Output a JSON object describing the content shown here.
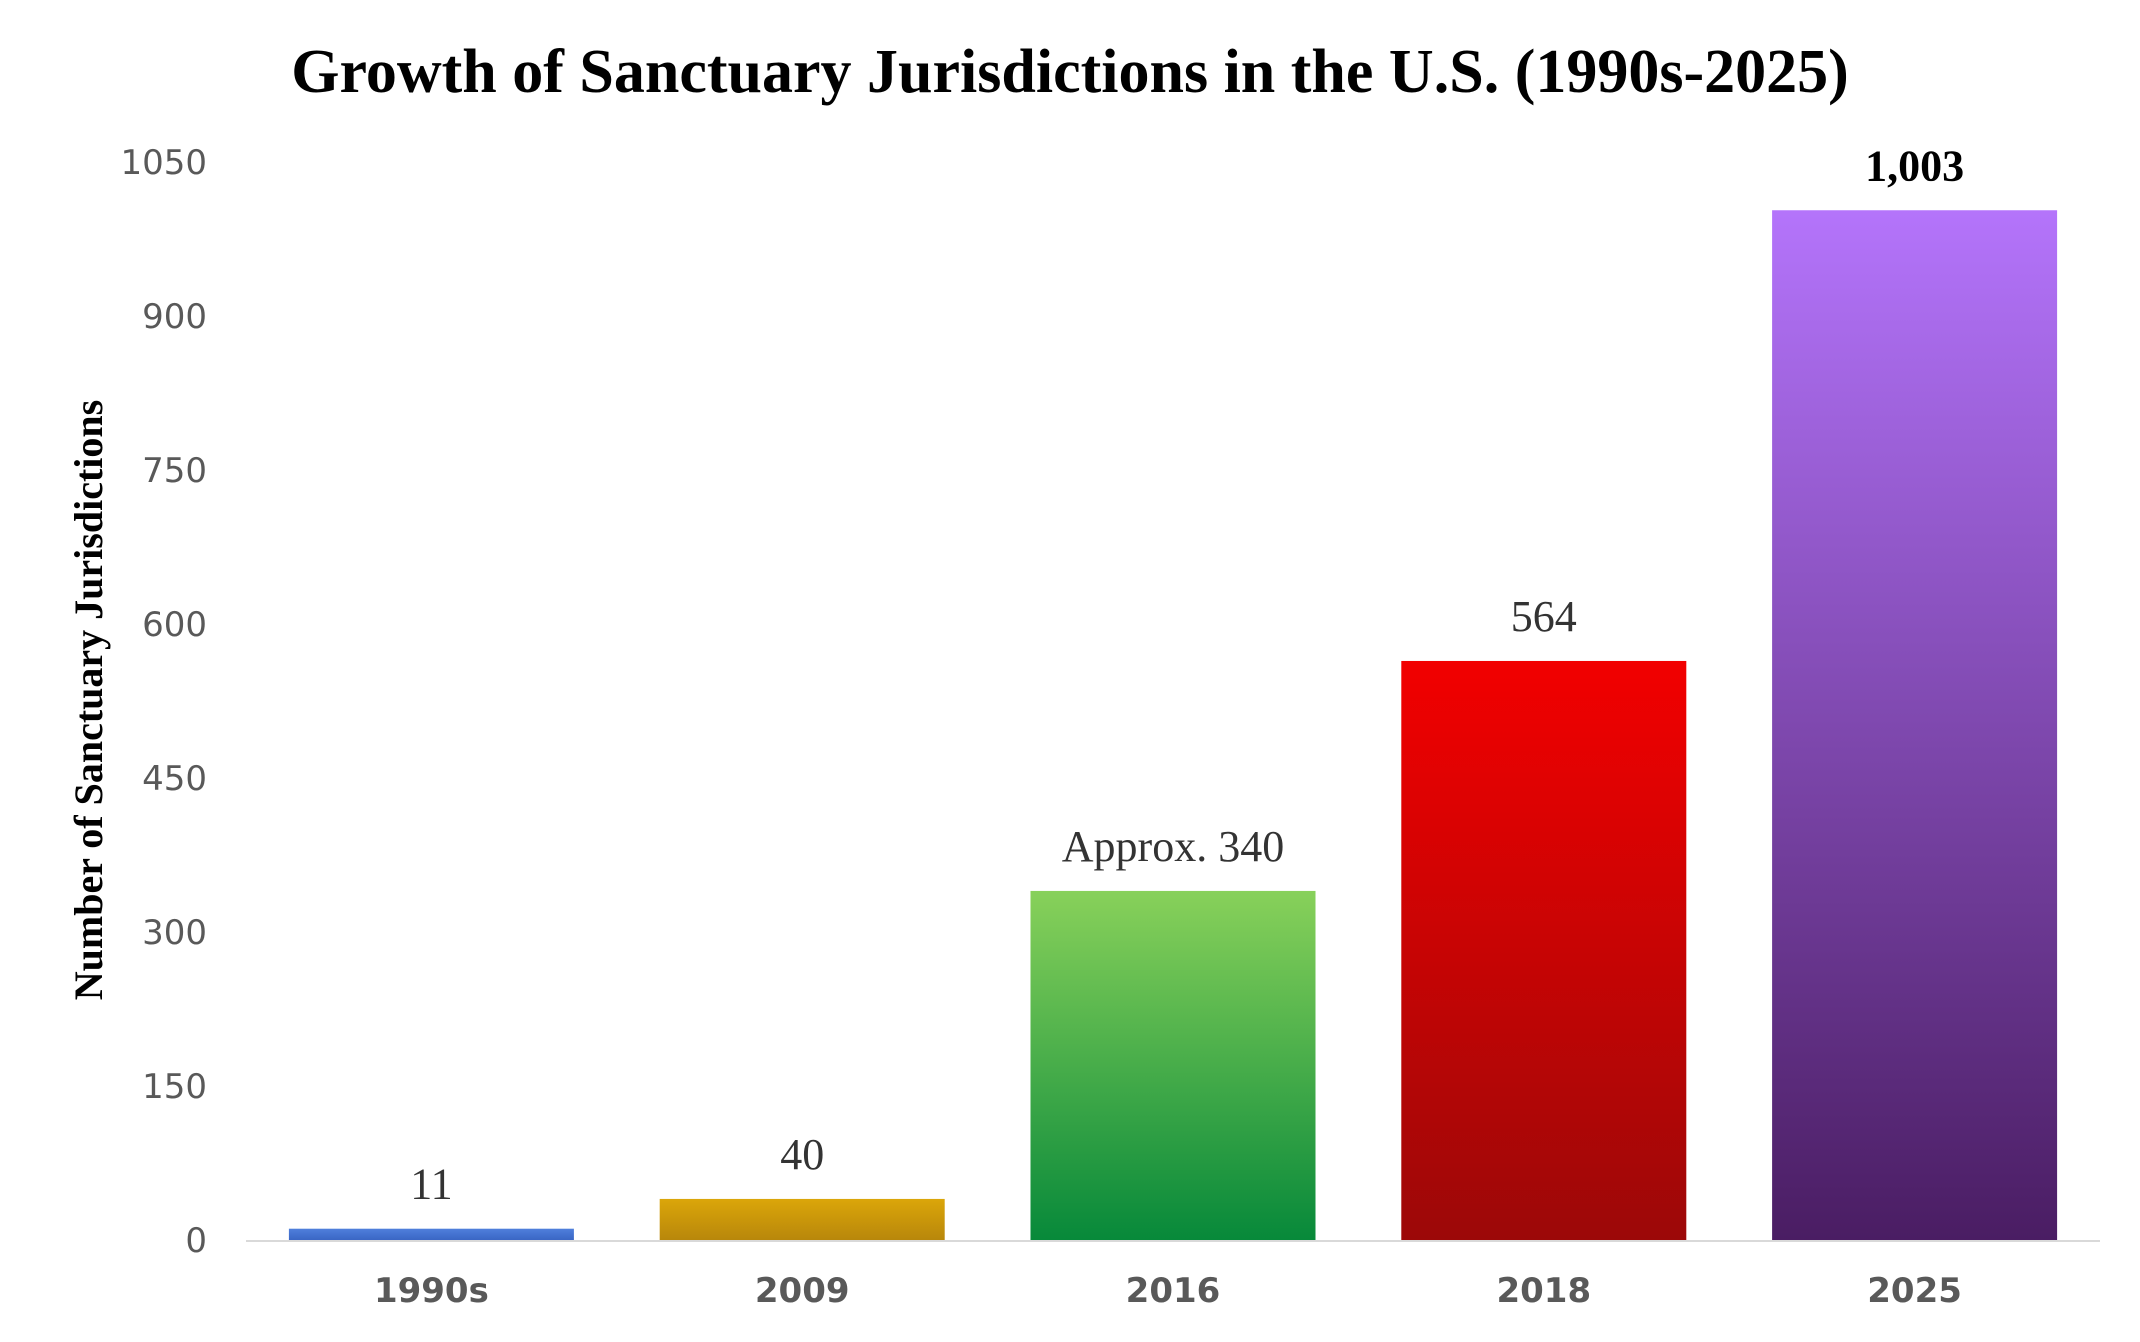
{
  "chart_data": {
    "type": "bar",
    "title": "Growth of Sanctuary Jurisdictions in the U.S. (1990s-2025)",
    "xlabel": "",
    "ylabel": "Number of Sanctuary Jurisdictions",
    "ylim": [
      0,
      1050
    ],
    "yticks": [
      0,
      150,
      300,
      450,
      600,
      750,
      900,
      1050
    ],
    "ytick_labels": [
      "0",
      "150",
      "300",
      "450",
      "600",
      "750",
      "900",
      "1050"
    ],
    "grid": false,
    "legend": "none",
    "categories": [
      "1990s",
      "2009",
      "2016",
      "2018",
      "2025"
    ],
    "values": [
      11,
      40,
      340,
      564,
      1003
    ],
    "data_labels": [
      "11",
      "40",
      "Approx. 340",
      "564",
      "1,003"
    ],
    "label_bold": [
      false,
      false,
      false,
      false,
      true
    ],
    "bar_colors": [
      {
        "top": "#4f7fdc",
        "bottom": "#3a66c4"
      },
      {
        "top": "#dba60a",
        "bottom": "#b8870b"
      },
      {
        "top": "#88d15a",
        "bottom": "#07893a"
      },
      {
        "top": "#f20000",
        "bottom": "#9c0808"
      },
      {
        "top": "#b474fb",
        "bottom": "#4a1d63"
      }
    ],
    "axis_color": "#d9d9d9"
  }
}
